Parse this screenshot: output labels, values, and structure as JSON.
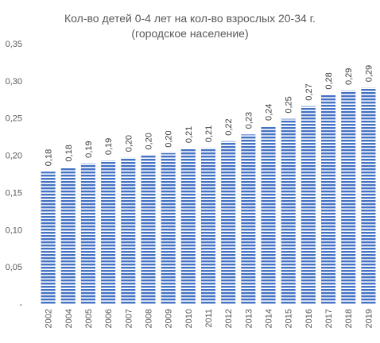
{
  "chart_data": {
    "type": "bar",
    "title_line1": "Кол-во детей 0-4 лет на кол-во взрослых 20-34 г.",
    "title_line2": "(городское население)",
    "categories": [
      "2002",
      "2004",
      "2005",
      "2006",
      "2007",
      "2008",
      "2009",
      "2010",
      "2011",
      "2012",
      "2013",
      "2014",
      "2015",
      "2016",
      "2017",
      "2018",
      "2019"
    ],
    "values": [
      0.178,
      0.184,
      0.189,
      0.193,
      0.197,
      0.2,
      0.203,
      0.209,
      0.21,
      0.219,
      0.228,
      0.239,
      0.249,
      0.266,
      0.281,
      0.287,
      0.291
    ],
    "data_labels": [
      "0,18",
      "0,18",
      "0,19",
      "0,19",
      "0,20",
      "0,20",
      "0,20",
      "0,21",
      "0,21",
      "0,22",
      "0,23",
      "0,24",
      "0,25",
      "0,27",
      "0,28",
      "0,29",
      "0,29"
    ],
    "yticks": [
      0,
      0.05,
      0.1,
      0.15,
      0.2,
      0.25,
      0.3,
      0.35
    ],
    "ytick_labels": [
      "-",
      "0,05",
      "0,10",
      "0,15",
      "0,20",
      "0,25",
      "0,30",
      "0,35"
    ],
    "ylim": [
      0,
      0.35
    ],
    "grid": false,
    "bar_color": "#4472c4",
    "bar_pattern": "horizontal stripes"
  }
}
